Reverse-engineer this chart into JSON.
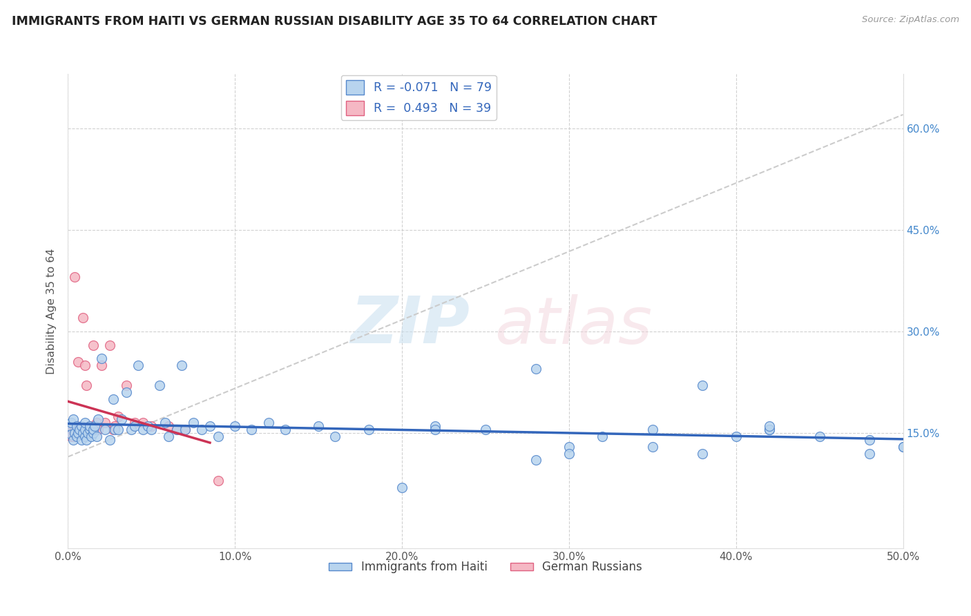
{
  "title": "IMMIGRANTS FROM HAITI VS GERMAN RUSSIAN DISABILITY AGE 35 TO 64 CORRELATION CHART",
  "source": "Source: ZipAtlas.com",
  "ylabel": "Disability Age 35 to 64",
  "xlim": [
    0.0,
    0.5
  ],
  "ylim": [
    -0.02,
    0.68
  ],
  "xticks": [
    0.0,
    0.1,
    0.2,
    0.3,
    0.4,
    0.5
  ],
  "xticklabels": [
    "0.0%",
    "10.0%",
    "20.0%",
    "30.0%",
    "40.0%",
    "50.0%"
  ],
  "yticks_right": [
    0.15,
    0.3,
    0.45,
    0.6
  ],
  "yticklabels_right": [
    "15.0%",
    "30.0%",
    "45.0%",
    "60.0%"
  ],
  "haiti_R": -0.071,
  "haiti_N": 79,
  "german_R": 0.493,
  "german_N": 39,
  "haiti_scatter_color": "#b8d4ee",
  "haiti_edge_color": "#5588cc",
  "german_scatter_color": "#f5b8c4",
  "german_edge_color": "#e06080",
  "haiti_line_color": "#3366bb",
  "german_line_color": "#cc3355",
  "combined_trend_color": "#cccccc",
  "haiti_points_x": [
    0.001,
    0.002,
    0.002,
    0.003,
    0.003,
    0.004,
    0.005,
    0.005,
    0.006,
    0.007,
    0.008,
    0.008,
    0.009,
    0.01,
    0.01,
    0.01,
    0.011,
    0.012,
    0.013,
    0.013,
    0.014,
    0.015,
    0.015,
    0.016,
    0.017,
    0.018,
    0.02,
    0.022,
    0.025,
    0.027,
    0.028,
    0.03,
    0.032,
    0.035,
    0.038,
    0.04,
    0.042,
    0.045,
    0.048,
    0.05,
    0.055,
    0.058,
    0.06,
    0.065,
    0.068,
    0.07,
    0.075,
    0.08,
    0.085,
    0.09,
    0.1,
    0.11,
    0.12,
    0.13,
    0.15,
    0.16,
    0.18,
    0.2,
    0.22,
    0.25,
    0.28,
    0.3,
    0.32,
    0.35,
    0.38,
    0.4,
    0.42,
    0.45,
    0.48,
    0.5,
    0.22,
    0.28,
    0.35,
    0.42,
    0.3,
    0.38,
    0.42,
    0.48,
    0.5
  ],
  "haiti_points_y": [
    0.16,
    0.148,
    0.165,
    0.17,
    0.14,
    0.15,
    0.16,
    0.145,
    0.15,
    0.155,
    0.14,
    0.16,
    0.15,
    0.145,
    0.155,
    0.165,
    0.14,
    0.15,
    0.155,
    0.16,
    0.145,
    0.15,
    0.155,
    0.16,
    0.145,
    0.17,
    0.26,
    0.155,
    0.14,
    0.2,
    0.155,
    0.155,
    0.17,
    0.21,
    0.155,
    0.16,
    0.25,
    0.155,
    0.16,
    0.155,
    0.22,
    0.165,
    0.145,
    0.155,
    0.25,
    0.155,
    0.165,
    0.155,
    0.16,
    0.145,
    0.16,
    0.155,
    0.165,
    0.155,
    0.16,
    0.145,
    0.155,
    0.07,
    0.16,
    0.155,
    0.11,
    0.13,
    0.145,
    0.13,
    0.12,
    0.145,
    0.155,
    0.145,
    0.12,
    0.13,
    0.155,
    0.245,
    0.155,
    0.155,
    0.12,
    0.22,
    0.16,
    0.14,
    0.13
  ],
  "german_points_x": [
    0.001,
    0.002,
    0.002,
    0.003,
    0.003,
    0.004,
    0.004,
    0.005,
    0.005,
    0.006,
    0.007,
    0.008,
    0.008,
    0.009,
    0.01,
    0.01,
    0.011,
    0.012,
    0.013,
    0.014,
    0.015,
    0.015,
    0.016,
    0.017,
    0.018,
    0.02,
    0.022,
    0.025,
    0.027,
    0.028,
    0.03,
    0.035,
    0.04,
    0.045,
    0.05,
    0.06,
    0.065,
    0.07,
    0.09
  ],
  "german_points_y": [
    0.15,
    0.155,
    0.145,
    0.155,
    0.145,
    0.38,
    0.155,
    0.16,
    0.155,
    0.255,
    0.15,
    0.155,
    0.15,
    0.32,
    0.25,
    0.155,
    0.22,
    0.155,
    0.16,
    0.155,
    0.28,
    0.155,
    0.155,
    0.165,
    0.155,
    0.25,
    0.165,
    0.28,
    0.155,
    0.16,
    0.175,
    0.22,
    0.165,
    0.165,
    0.16,
    0.16,
    0.155,
    0.155,
    0.08
  ],
  "haiti_line_x0": 0.0,
  "haiti_line_x1": 0.5,
  "german_line_x0": 0.0,
  "german_line_x1": 0.085,
  "combined_line_x0": 0.0,
  "combined_line_x1": 0.5
}
